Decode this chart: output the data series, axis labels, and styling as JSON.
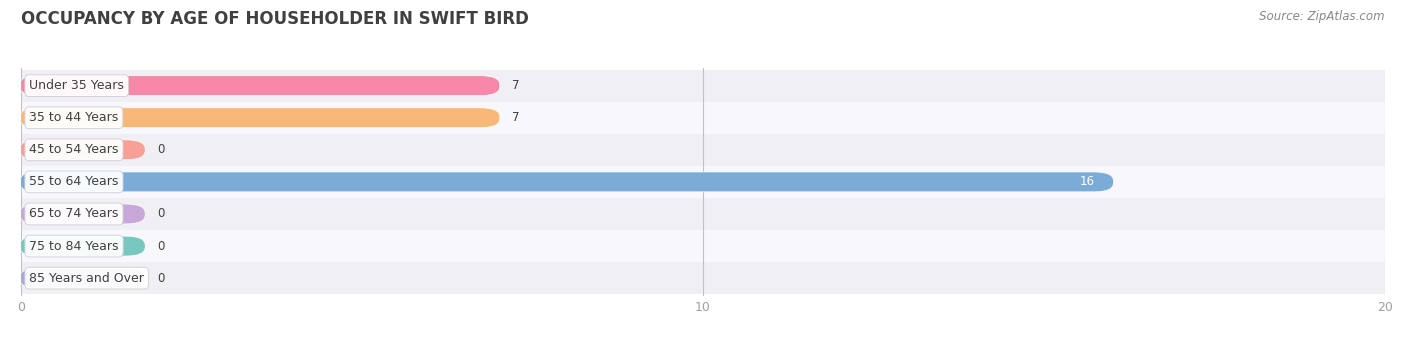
{
  "title": "OCCUPANCY BY AGE OF HOUSEHOLDER IN SWIFT BIRD",
  "source": "Source: ZipAtlas.com",
  "categories": [
    "Under 35 Years",
    "35 to 44 Years",
    "45 to 54 Years",
    "55 to 64 Years",
    "65 to 74 Years",
    "75 to 84 Years",
    "85 Years and Over"
  ],
  "values": [
    7,
    7,
    0,
    16,
    0,
    0,
    0
  ],
  "bar_colors": [
    "#F888A8",
    "#F8B878",
    "#F8A098",
    "#7BACD8",
    "#C8A8D8",
    "#78C8C0",
    "#A8A8D8"
  ],
  "bg_row_colors": [
    "#F0F0F4",
    "#F8F8FC"
  ],
  "xlim": [
    0,
    20
  ],
  "xticks": [
    0,
    10,
    20
  ],
  "title_fontsize": 12,
  "label_fontsize": 9,
  "value_fontsize": 8.5,
  "source_fontsize": 8.5,
  "bar_height": 0.58,
  "background_color": "#FFFFFF",
  "title_color": "#404040",
  "source_color": "#888888",
  "label_color": "#404040",
  "tick_color": "#A0A0A0",
  "zero_bar_width": 1.8
}
